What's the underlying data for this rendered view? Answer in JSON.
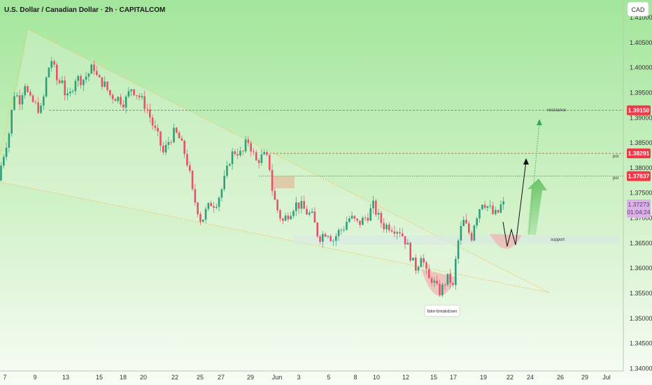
{
  "header": {
    "title": "U.S. Dollar / Canadian Dollar · 2h · CAPITALCOM"
  },
  "currency_button": {
    "label": "CAD"
  },
  "price_badges": [
    {
      "id": "resistance",
      "label": "1.39150",
      "color": "#f23645",
      "price": 1.3915
    },
    {
      "id": "poi-upper",
      "label": "1.38291",
      "color": "#f23645",
      "price": 1.38291
    },
    {
      "id": "poi-lower",
      "label": "1.37837",
      "color": "#f23645",
      "price": 1.37837
    }
  ],
  "current_price": {
    "label": "1.37273",
    "countdown": "01:04:24",
    "color": "#d9b3e6",
    "price": 1.37273
  },
  "annotations": {
    "resistance": "resistance",
    "poi_upper": "poi",
    "poi_lower": "poi",
    "support": "support",
    "fake_breakdown": "fake-breakdown"
  },
  "colors": {
    "background_top": "#a3e69c",
    "background_bottom": "#f8fcf6",
    "bull_candle": "#2e9e7b",
    "bear_candle": "#e8516a",
    "level_line": "#f23645",
    "wedge_line": "#f2c36b"
  },
  "chart_data": {
    "type": "candlestick",
    "title": "U.S. Dollar / Canadian Dollar · 2h · CAPITALCOM",
    "ylim": [
      1.3395,
      1.4135
    ],
    "y_ticks": [
      "1.41000",
      "1.40500",
      "1.40000",
      "1.39500",
      "1.39000",
      "1.38500",
      "1.38000",
      "1.37500",
      "1.37000",
      "1.36500",
      "1.36000",
      "1.35500",
      "1.35000",
      "1.34500",
      "1.34000"
    ],
    "x_ticks": [
      "7",
      "9",
      "13",
      "15",
      "18",
      "20",
      "22",
      "25",
      "27",
      "29",
      "Jun",
      "3",
      "5",
      "8",
      "10",
      "12",
      "15",
      "17",
      "19",
      "22",
      "24",
      "26",
      "29",
      "Jul"
    ],
    "levels": [
      {
        "name": "resistance",
        "price": 1.3915
      },
      {
        "name": "poi",
        "price": 1.38291
      },
      {
        "name": "poi",
        "price": 1.37837
      }
    ],
    "price_path": [
      {
        "d": 0,
        "p": 1.3775
      },
      {
        "d": 3,
        "p": 1.38
      },
      {
        "d": 10,
        "p": 1.3842
      },
      {
        "d": 16,
        "p": 1.3875
      },
      {
        "d": 22,
        "p": 1.395
      },
      {
        "d": 26,
        "p": 1.3945
      },
      {
        "d": 30,
        "p": 1.3935
      },
      {
        "d": 38,
        "p": 1.397
      },
      {
        "d": 44,
        "p": 1.3935
      },
      {
        "d": 50,
        "p": 1.393
      },
      {
        "d": 56,
        "p": 1.392
      },
      {
        "d": 62,
        "p": 1.3915
      },
      {
        "d": 70,
        "p": 1.3993
      },
      {
        "d": 76,
        "p": 1.4015
      },
      {
        "d": 82,
        "p": 1.3985
      },
      {
        "d": 86,
        "p": 1.396
      },
      {
        "d": 90,
        "p": 1.399
      },
      {
        "d": 95,
        "p": 1.395
      },
      {
        "d": 100,
        "p": 1.3935
      },
      {
        "d": 110,
        "p": 1.398
      },
      {
        "d": 120,
        "p": 1.3975
      },
      {
        "d": 130,
        "p": 1.399
      },
      {
        "d": 136,
        "p": 1.4005
      },
      {
        "d": 142,
        "p": 1.3975
      },
      {
        "d": 150,
        "p": 1.397
      },
      {
        "d": 160,
        "p": 1.3945
      },
      {
        "d": 170,
        "p": 1.394
      },
      {
        "d": 180,
        "p": 1.393
      },
      {
        "d": 190,
        "p": 1.396
      },
      {
        "d": 200,
        "p": 1.3945
      },
      {
        "d": 212,
        "p": 1.392
      },
      {
        "d": 222,
        "p": 1.388
      },
      {
        "d": 228,
        "p": 1.3862
      },
      {
        "d": 236,
        "p": 1.3828
      },
      {
        "d": 242,
        "p": 1.385
      },
      {
        "d": 252,
        "p": 1.3872
      },
      {
        "d": 258,
        "p": 1.386
      },
      {
        "d": 266,
        "p": 1.383
      },
      {
        "d": 272,
        "p": 1.38
      },
      {
        "d": 278,
        "p": 1.3745
      },
      {
        "d": 284,
        "p": 1.3722
      },
      {
        "d": 290,
        "p": 1.3692
      },
      {
        "d": 296,
        "p": 1.3712
      },
      {
        "d": 304,
        "p": 1.373
      },
      {
        "d": 310,
        "p": 1.3728
      },
      {
        "d": 318,
        "p": 1.3752
      },
      {
        "d": 326,
        "p": 1.379
      },
      {
        "d": 332,
        "p": 1.3825
      },
      {
        "d": 340,
        "p": 1.3835
      },
      {
        "d": 348,
        "p": 1.3825
      },
      {
        "d": 356,
        "p": 1.3857
      },
      {
        "d": 362,
        "p": 1.3838
      },
      {
        "d": 368,
        "p": 1.3812
      },
      {
        "d": 374,
        "p": 1.382
      },
      {
        "d": 382,
        "p": 1.3825
      },
      {
        "d": 388,
        "p": 1.38
      },
      {
        "d": 392,
        "p": 1.375
      },
      {
        "d": 398,
        "p": 1.372
      },
      {
        "d": 406,
        "p": 1.3692
      },
      {
        "d": 412,
        "p": 1.3705
      },
      {
        "d": 418,
        "p": 1.3715
      },
      {
        "d": 424,
        "p": 1.3728
      },
      {
        "d": 432,
        "p": 1.3725
      },
      {
        "d": 440,
        "p": 1.3712
      },
      {
        "d": 448,
        "p": 1.3705
      },
      {
        "d": 452,
        "p": 1.3688
      },
      {
        "d": 458,
        "p": 1.366
      },
      {
        "d": 464,
        "p": 1.3668
      },
      {
        "d": 470,
        "p": 1.3675
      },
      {
        "d": 478,
        "p": 1.3655
      },
      {
        "d": 486,
        "p": 1.3672
      },
      {
        "d": 494,
        "p": 1.3682
      },
      {
        "d": 500,
        "p": 1.37
      },
      {
        "d": 506,
        "p": 1.3698
      },
      {
        "d": 514,
        "p": 1.3688
      },
      {
        "d": 520,
        "p": 1.3695
      },
      {
        "d": 528,
        "p": 1.3705
      },
      {
        "d": 536,
        "p": 1.3725
      },
      {
        "d": 542,
        "p": 1.3705
      },
      {
        "d": 550,
        "p": 1.3685
      },
      {
        "d": 558,
        "p": 1.3685
      },
      {
        "d": 566,
        "p": 1.368
      },
      {
        "d": 574,
        "p": 1.3675
      },
      {
        "d": 580,
        "p": 1.366
      },
      {
        "d": 586,
        "p": 1.364
      },
      {
        "d": 592,
        "p": 1.3612
      },
      {
        "d": 598,
        "p": 1.3598
      },
      {
        "d": 604,
        "p": 1.363
      },
      {
        "d": 610,
        "p": 1.36
      },
      {
        "d": 614,
        "p": 1.3575
      },
      {
        "d": 620,
        "p": 1.358
      },
      {
        "d": 626,
        "p": 1.356
      },
      {
        "d": 632,
        "p": 1.3552
      },
      {
        "d": 638,
        "p": 1.3572
      },
      {
        "d": 644,
        "p": 1.3582
      },
      {
        "d": 650,
        "p": 1.356
      },
      {
        "d": 654,
        "p": 1.362
      },
      {
        "d": 658,
        "p": 1.366
      },
      {
        "d": 664,
        "p": 1.3695
      },
      {
        "d": 670,
        "p": 1.368
      },
      {
        "d": 676,
        "p": 1.366
      },
      {
        "d": 680,
        "p": 1.369
      },
      {
        "d": 686,
        "p": 1.3715
      },
      {
        "d": 692,
        "p": 1.3735
      },
      {
        "d": 698,
        "p": 1.3725
      },
      {
        "d": 702,
        "p": 1.372
      },
      {
        "d": 708,
        "p": 1.3705
      },
      {
        "d": 714,
        "p": 1.371
      },
      {
        "d": 719,
        "p": 1.3727
      }
    ]
  }
}
